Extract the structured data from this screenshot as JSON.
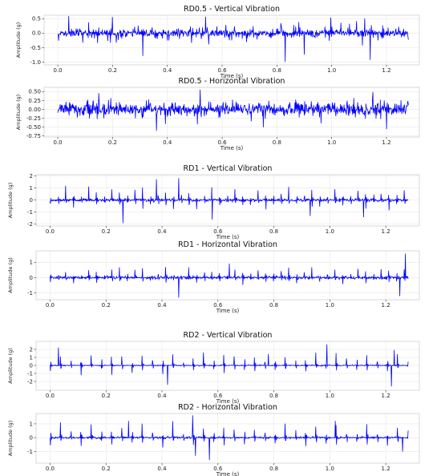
{
  "chart_data": [
    {
      "type": "line",
      "title": "RD0.5 - Vertical Vibration",
      "xlabel": "Time (s)",
      "ylabel": "Amplitude (g)",
      "xlim": [
        -0.05,
        1.32
      ],
      "ylim": [
        -1.1,
        0.62
      ],
      "xticks": [
        0.0,
        0.2,
        0.4,
        0.6,
        0.8,
        1.0,
        1.2
      ],
      "xtick_labels": [
        "0.0",
        "0.2",
        "0.4",
        "0.6",
        "0.8",
        "1.0",
        "1.2"
      ],
      "yticks": [
        0.5,
        0.0,
        -0.5,
        -1.0
      ],
      "ytick_labels": [
        "0.5",
        "0.0",
        "-0.5",
        "-1.0"
      ],
      "grid": true,
      "line_color": "#0000ff",
      "signal": {
        "x_start": 0.0,
        "x_end": 1.28,
        "n": 900,
        "noise": 0.13,
        "spike_every": 0.006,
        "spike_amp": 0.45,
        "seed": 11
      },
      "extremes": [
        [
          0.04,
          0.58
        ],
        [
          0.2,
          0.55
        ],
        [
          0.31,
          -0.78
        ],
        [
          0.54,
          0.56
        ],
        [
          0.83,
          -0.98
        ],
        [
          0.9,
          -0.74
        ],
        [
          1.14,
          -0.92
        ],
        [
          1.12,
          0.5
        ]
      ]
    },
    {
      "type": "line",
      "title": "RD0.5 - Horizontal Vibration",
      "xlabel": "Time (s)",
      "ylabel": "Amplitude (g)",
      "xlim": [
        -0.05,
        1.32
      ],
      "ylim": [
        -0.78,
        0.62
      ],
      "xticks": [
        0.0,
        0.2,
        0.4,
        0.6,
        0.8,
        1.0,
        1.2
      ],
      "xtick_labels": [
        "0.0",
        "0.2",
        "0.4",
        "0.6",
        "0.8",
        "1.0",
        "1.2"
      ],
      "yticks": [
        0.5,
        0.25,
        0.0,
        -0.25,
        -0.5,
        -0.75
      ],
      "ytick_labels": [
        "0.50",
        "0.25",
        "0.00",
        "-0.25",
        "-0.50",
        "-0.75"
      ],
      "grid": true,
      "line_color": "#0000ff",
      "signal": {
        "x_start": 0.0,
        "x_end": 1.28,
        "n": 900,
        "noise": 0.17,
        "spike_every": 0.006,
        "spike_amp": 0.35,
        "seed": 23
      },
      "extremes": [
        [
          0.15,
          0.45
        ],
        [
          0.52,
          0.55
        ],
        [
          0.36,
          -0.6
        ],
        [
          0.75,
          -0.5
        ],
        [
          1.15,
          0.48
        ],
        [
          1.2,
          -0.55
        ]
      ]
    },
    {
      "type": "line",
      "title": "RD1 - Vertical Vibration",
      "xlabel": "Time (s)",
      "ylabel": "Amplitude (g)",
      "xlim": [
        -0.05,
        1.32
      ],
      "ylim": [
        -2.15,
        2.1
      ],
      "xticks": [
        0.0,
        0.2,
        0.4,
        0.6,
        0.8,
        1.0,
        1.2
      ],
      "xtick_labels": [
        "0.0",
        "0.2",
        "0.4",
        "0.6",
        "0.8",
        "1.0",
        "1.2"
      ],
      "yticks": [
        2,
        1,
        0,
        -1,
        -2
      ],
      "ytick_labels": [
        "2",
        "1",
        "0",
        "-1",
        "-2"
      ],
      "grid": true,
      "line_color": "#0000ff",
      "signal": {
        "x_start": 0.0,
        "x_end": 1.28,
        "n": 900,
        "noise": 0.12,
        "spike_every": 0.0275,
        "spike_amp": 1.3,
        "seed": 37
      },
      "extremes": [
        [
          0.26,
          -1.9
        ],
        [
          0.38,
          1.7
        ],
        [
          0.46,
          1.8
        ],
        [
          0.58,
          -1.6
        ],
        [
          0.93,
          -1.3
        ],
        [
          1.12,
          -1.4
        ]
      ]
    },
    {
      "type": "line",
      "title": "RD1 - Horizontal Vibration",
      "xlabel": "Time (s)",
      "ylabel": "Amplitude (g)",
      "xlim": [
        -0.05,
        1.32
      ],
      "ylim": [
        -1.45,
        1.75
      ],
      "xticks": [
        0.0,
        0.2,
        0.4,
        0.6,
        0.8,
        1.0,
        1.2
      ],
      "xtick_labels": [
        "0.0",
        "0.2",
        "0.4",
        "0.6",
        "0.8",
        "1.0",
        "1.2"
      ],
      "yticks": [
        1,
        0,
        -1
      ],
      "ytick_labels": [
        "1",
        "0",
        "-1"
      ],
      "grid": true,
      "line_color": "#0000ff",
      "signal": {
        "x_start": 0.0,
        "x_end": 1.28,
        "n": 900,
        "noise": 0.1,
        "spike_every": 0.0275,
        "spike_amp": 0.75,
        "seed": 41
      },
      "extremes": [
        [
          0.46,
          -1.3
        ],
        [
          1.27,
          1.55
        ],
        [
          1.25,
          -1.2
        ],
        [
          0.64,
          0.9
        ]
      ]
    },
    {
      "type": "line",
      "title": "RD2 - Vertical Vibration",
      "xlabel": "Time (s)",
      "ylabel": "Amplitude (g)",
      "xlim": [
        -0.05,
        1.32
      ],
      "ylim": [
        -3.1,
        3.0
      ],
      "xticks": [
        0.0,
        0.2,
        0.4,
        0.6,
        0.8,
        1.0,
        1.2
      ],
      "xtick_labels": [
        "0.0",
        "0.2",
        "0.4",
        "0.6",
        "0.8",
        "1.0",
        "1.2"
      ],
      "yticks": [
        2,
        1,
        0,
        -1,
        -2
      ],
      "ytick_labels": [
        "2",
        "1",
        "0",
        "-1",
        "-2"
      ],
      "grid": true,
      "line_color": "#0000ff",
      "signal": {
        "x_start": 0.0,
        "x_end": 1.28,
        "n": 900,
        "noise": 0.07,
        "spike_every": 0.0365,
        "spike_amp": 2.0,
        "seed": 53
      },
      "extremes": [
        [
          0.03,
          2.2
        ],
        [
          0.42,
          -2.4
        ],
        [
          0.99,
          2.6
        ],
        [
          1.22,
          -2.6
        ],
        [
          1.23,
          1.9
        ],
        [
          0.78,
          1.4
        ]
      ]
    },
    {
      "type": "line",
      "title": "RD2 - Horizontal Vibration",
      "xlabel": "Time (s)",
      "ylabel": "Amplitude (g)",
      "xlim": [
        -0.05,
        1.32
      ],
      "ylim": [
        -1.85,
        1.75
      ],
      "xticks": [
        0.0,
        0.2,
        0.4,
        0.6,
        0.8,
        1.0,
        1.2
      ],
      "xtick_labels": [
        "0.0",
        "0.2",
        "0.4",
        "0.6",
        "0.8",
        "1.0",
        "1.2"
      ],
      "yticks": [
        1,
        0,
        -1
      ],
      "ytick_labels": [
        "1",
        "0",
        "-1"
      ],
      "grid": true,
      "line_color": "#0000ff",
      "signal": {
        "x_start": 0.0,
        "x_end": 1.28,
        "n": 900,
        "noise": 0.07,
        "spike_every": 0.0365,
        "spike_amp": 1.2,
        "seed": 67
      },
      "extremes": [
        [
          0.28,
          1.2
        ],
        [
          0.51,
          1.6
        ],
        [
          0.52,
          -1.3
        ],
        [
          0.57,
          -1.6
        ],
        [
          1.02,
          1.2
        ],
        [
          1.26,
          1.5
        ],
        [
          1.26,
          -1.0
        ]
      ]
    }
  ]
}
